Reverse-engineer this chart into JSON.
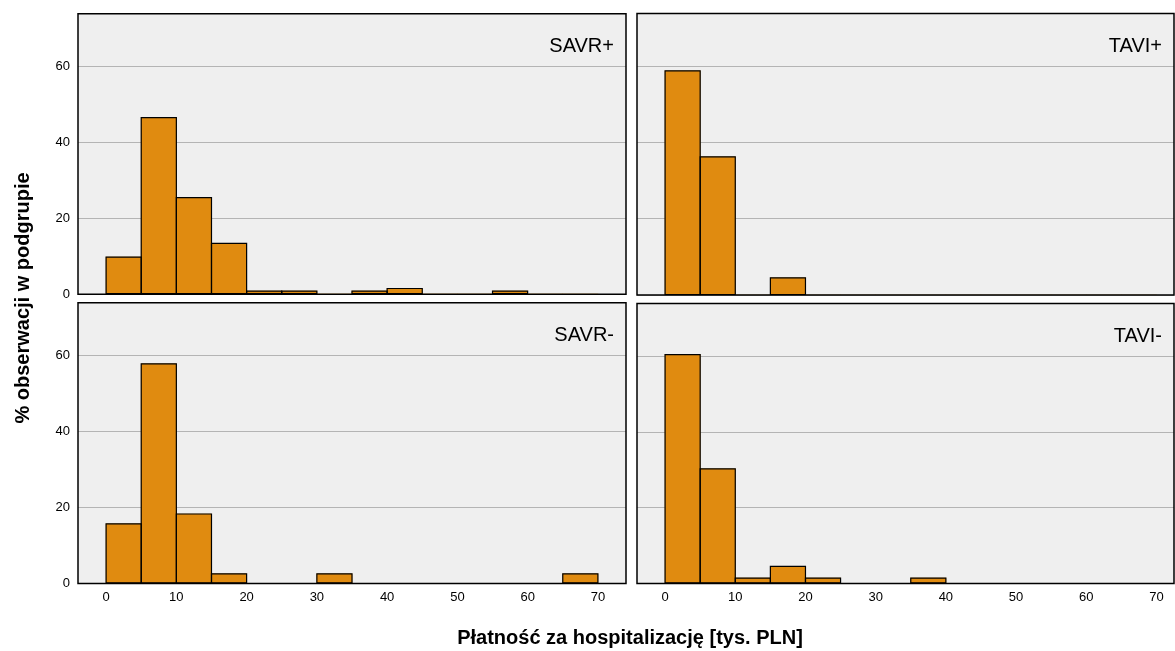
{
  "chart_data": [
    {
      "type": "histogram",
      "title": "SAVR+",
      "ylabel": "% obserwacji w podgrupie",
      "color": "#e08b10",
      "bins": [
        0,
        5,
        10,
        15,
        20,
        25,
        30,
        35,
        40,
        45,
        50,
        55,
        60,
        65,
        70
      ],
      "values": [
        9.8,
        46.6,
        25.5,
        13.4,
        0.8,
        0.8,
        0,
        0.8,
        1.5,
        0,
        0,
        0.8,
        0,
        0
      ],
      "xlim": [
        -4,
        74
      ],
      "ylim": [
        0,
        74
      ],
      "xticks": [
        0,
        10,
        20,
        30,
        40,
        50,
        60,
        70
      ],
      "yticks": [
        0,
        20,
        40,
        60
      ],
      "grid": "y",
      "tick_labels": "y"
    },
    {
      "type": "histogram",
      "title": "TAVI+",
      "color": "#e08b10",
      "bins": [
        0,
        5,
        10,
        15,
        20,
        25,
        30,
        35,
        40,
        45,
        50,
        55,
        60,
        65,
        70
      ],
      "values": [
        58.9,
        36.3,
        0,
        4.5,
        0,
        0,
        0,
        0,
        0,
        0,
        0,
        0,
        0,
        0
      ],
      "xlim": [
        -4,
        72.5
      ],
      "ylim": [
        0,
        74
      ],
      "xticks": [
        0,
        10,
        20,
        30,
        40,
        50,
        60,
        70
      ],
      "yticks": [
        0,
        20,
        40,
        60
      ],
      "grid": "y",
      "tick_labels": false
    },
    {
      "type": "histogram",
      "title": "SAVR-",
      "xlabel": "Płatność za hospitalizację [tys. PLN]",
      "color": "#e08b10",
      "bins": [
        0,
        5,
        10,
        15,
        20,
        25,
        30,
        35,
        40,
        45,
        50,
        55,
        60,
        65,
        70
      ],
      "values": [
        15.7,
        57.9,
        18.3,
        2.5,
        0,
        0,
        2.5,
        0,
        0,
        0,
        0,
        0,
        0,
        2.5
      ],
      "xlim": [
        -4,
        74
      ],
      "ylim": [
        0,
        74
      ],
      "xticks": [
        0,
        10,
        20,
        30,
        40,
        50,
        60,
        70
      ],
      "yticks": [
        0,
        20,
        40,
        60
      ],
      "grid": "y"
    },
    {
      "type": "histogram",
      "title": "TAVI-",
      "color": "#e08b10",
      "bins": [
        0,
        5,
        10,
        15,
        20,
        25,
        30,
        35,
        40,
        45,
        50,
        55,
        60,
        65,
        70
      ],
      "values": [
        60.5,
        30.3,
        1.4,
        4.5,
        1.4,
        0,
        0,
        1.4,
        0,
        0,
        0,
        0,
        0,
        0
      ],
      "xlim": [
        -4,
        72.5
      ],
      "ylim": [
        0,
        74
      ],
      "xticks": [
        0,
        10,
        20,
        30,
        40,
        50,
        60,
        70
      ],
      "yticks": [
        0,
        20,
        40,
        60
      ],
      "grid": "y",
      "tick_labels": "x"
    }
  ]
}
